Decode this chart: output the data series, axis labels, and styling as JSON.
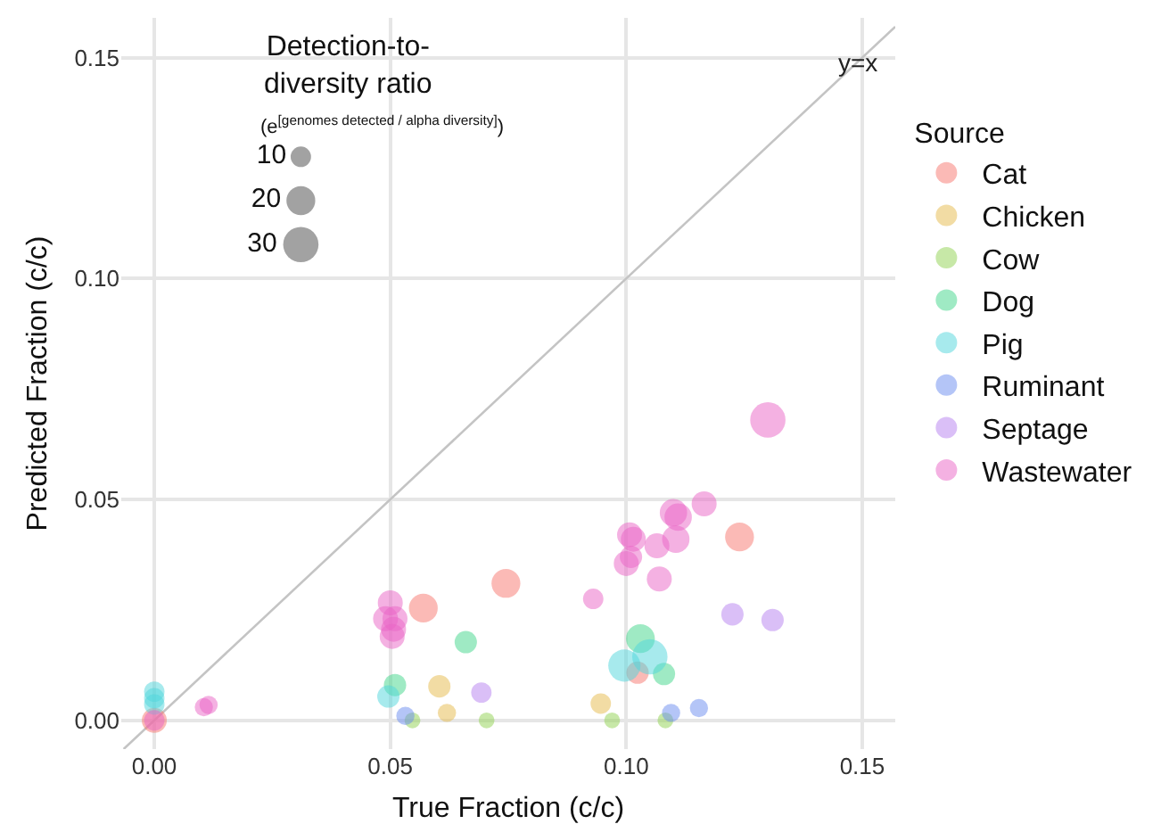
{
  "chart_data": {
    "type": "bubble",
    "xlabel": "True Fraction (c/c)",
    "ylabel": "Predicted Fraction (c/c)",
    "legend_title": "Source",
    "xlim": [
      -0.007,
      0.157
    ],
    "ylim": [
      -0.0065,
      0.159
    ],
    "xticks": [
      {
        "value": 0,
        "label": "0.00"
      },
      {
        "value": 0.05,
        "label": "0.05"
      },
      {
        "value": 0.1,
        "label": "0.10"
      },
      {
        "value": 0.15,
        "label": "0.15"
      }
    ],
    "yticks": [
      {
        "value": 0,
        "label": "0.00"
      },
      {
        "value": 0.05,
        "label": "0.05"
      },
      {
        "value": 0.1,
        "label": "0.10"
      },
      {
        "value": 0.15,
        "label": "0.15"
      }
    ],
    "grid": true,
    "legend": "right",
    "marker": "circle",
    "size_legend": [
      10,
      20,
      30
    ],
    "annotations": [
      "Detection-to-diversity ratio",
      "(e$^{[genomes detected / alpha diversity]}$)"
    ],
    "series": [
      {
        "type": "line",
        "name": "y=x",
        "color": "#c4c4c4",
        "marker": "none",
        "x": [
          -0.0065,
          0.157
        ],
        "values": [
          -0.0065,
          0.157
        ]
      },
      {
        "name": "Cat",
        "color": "#f8766d",
        "x": [
          0.124,
          0.0745,
          0.057,
          0.1024,
          0
        ],
        "values": [
          0.0415,
          0.031,
          0.0254,
          0.0108,
          0
        ],
        "sizes": [
          20,
          20,
          20,
          12,
          15
        ]
      },
      {
        "name": "Chicken",
        "color": "#e6b94a",
        "x": [
          0.0604,
          0.062,
          0.0946
        ],
        "values": [
          0.0077,
          0.0017,
          0.0038
        ],
        "sizes": [
          12,
          8,
          10
        ]
      },
      {
        "name": "Cow",
        "color": "#8fd14f",
        "x": [
          0.0547,
          0.0704,
          0.097,
          0.1083
        ],
        "values": [
          0,
          0,
          0,
          0
        ],
        "sizes": [
          6,
          6,
          6,
          6
        ]
      },
      {
        "name": "Dog",
        "color": "#3fd68a",
        "x": [
          0.103,
          0.108,
          0.066,
          0.051
        ],
        "values": [
          0.0185,
          0.0105,
          0.0177,
          0.008
        ],
        "sizes": [
          20,
          12,
          12,
          12
        ]
      },
      {
        "name": "Pig",
        "color": "#4fd6dc",
        "x": [
          0.105,
          0.0996,
          0.0496,
          0,
          0,
          0
        ],
        "values": [
          0.0144,
          0.0124,
          0.0054,
          0.0065,
          0.005,
          0.0036
        ],
        "sizes": [
          30,
          25,
          12,
          10,
          10,
          10
        ]
      },
      {
        "name": "Ruminant",
        "color": "#6a8cf0",
        "x": [
          0.0532,
          0.1095,
          0.1154
        ],
        "values": [
          0.001,
          0.0017,
          0.0028
        ],
        "sizes": [
          8,
          8,
          8
        ]
      },
      {
        "name": "Septage",
        "color": "#b680f0",
        "x": [
          0.1225,
          0.131,
          0.0693
        ],
        "values": [
          0.024,
          0.0227,
          0.0063
        ],
        "sizes": [
          12,
          12,
          10
        ]
      },
      {
        "name": "Wastewater",
        "color": "#ea63c6",
        "x": [
          0.13,
          0.1165,
          0.11,
          0.111,
          0.1105,
          0.1065,
          0.1007,
          0.1015,
          0.101,
          0.1,
          0.107,
          0.093,
          0.05,
          0.049,
          0.051,
          0.0507,
          0.0504,
          0.0105,
          0.0115,
          0
        ],
        "values": [
          0.068,
          0.049,
          0.047,
          0.046,
          0.041,
          0.0395,
          0.042,
          0.041,
          0.037,
          0.0355,
          0.032,
          0.0275,
          0.0266,
          0.023,
          0.023,
          0.0206,
          0.019,
          0.003,
          0.0035,
          0
        ],
        "sizes": [
          30,
          15,
          18,
          18,
          18,
          15,
          15,
          15,
          12,
          15,
          15,
          10,
          15,
          15,
          15,
          15,
          15,
          8,
          8,
          10
        ]
      }
    ]
  }
}
